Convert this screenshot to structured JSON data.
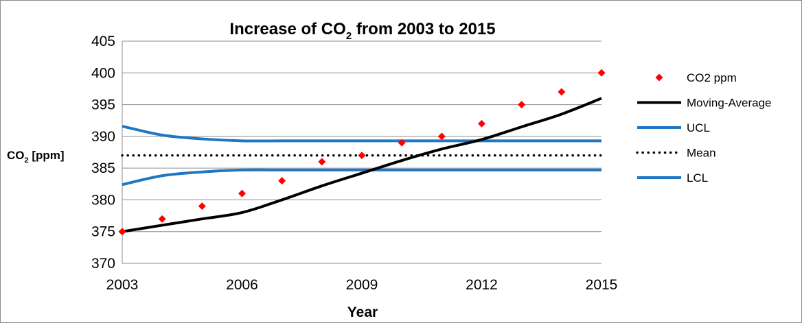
{
  "chart_data": {
    "type": "line",
    "title": {
      "prefix": "Increase of CO",
      "subscript": "2",
      "suffix": " from 2003 to 2015"
    },
    "xlabel": "Year",
    "ylabel": {
      "prefix": "CO",
      "subscript": "2",
      "suffix": " [ppm]"
    },
    "xlim": [
      2003,
      2015
    ],
    "ylim": [
      370,
      405
    ],
    "x_ticks": [
      "2003",
      "2006",
      "2009",
      "2012",
      "2015"
    ],
    "y_ticks": [
      "370",
      "375",
      "380",
      "385",
      "390",
      "395",
      "400",
      "405"
    ],
    "grid": "horizontal",
    "legend_position": "right",
    "series": [
      {
        "name": "CO2 ppm",
        "kind": "markers",
        "marker": "diamond",
        "color": "#ff0000",
        "x": [
          2003,
          2004,
          2005,
          2006,
          2007,
          2008,
          2009,
          2010,
          2011,
          2012,
          2013,
          2014,
          2015
        ],
        "y": [
          375,
          377,
          379,
          381,
          383,
          386,
          387,
          389,
          390,
          392,
          395,
          397,
          400
        ]
      },
      {
        "name": "Moving-Average",
        "kind": "line",
        "style": "solid",
        "color": "#000000",
        "x": [
          2003,
          2004,
          2005,
          2006,
          2007,
          2008,
          2009,
          2010,
          2011,
          2012,
          2013,
          2014,
          2015
        ],
        "y": [
          375,
          376,
          377,
          378,
          380,
          382.2,
          384.2,
          386.2,
          388,
          389.5,
          391.5,
          393.5,
          396
        ]
      },
      {
        "name": "UCL",
        "kind": "line",
        "style": "solid",
        "color": "#1f77c4",
        "x": [
          2003,
          2004,
          2005,
          2006,
          2007,
          2008,
          2009,
          2010,
          2011,
          2012,
          2013,
          2014,
          2015
        ],
        "y": [
          391.6,
          390.2,
          389.6,
          389.3,
          389.3,
          389.3,
          389.3,
          389.3,
          389.3,
          389.3,
          389.3,
          389.3,
          389.3
        ]
      },
      {
        "name": "Mean",
        "kind": "line",
        "style": "dotted",
        "color": "#000000",
        "x": [
          2003,
          2015
        ],
        "y": [
          387,
          387
        ]
      },
      {
        "name": "LCL",
        "kind": "line",
        "style": "solid",
        "color": "#1f77c4",
        "x": [
          2003,
          2004,
          2005,
          2006,
          2007,
          2008,
          2009,
          2010,
          2011,
          2012,
          2013,
          2014,
          2015
        ],
        "y": [
          382.4,
          383.8,
          384.4,
          384.7,
          384.7,
          384.7,
          384.7,
          384.7,
          384.7,
          384.7,
          384.7,
          384.7,
          384.7
        ]
      }
    ]
  }
}
